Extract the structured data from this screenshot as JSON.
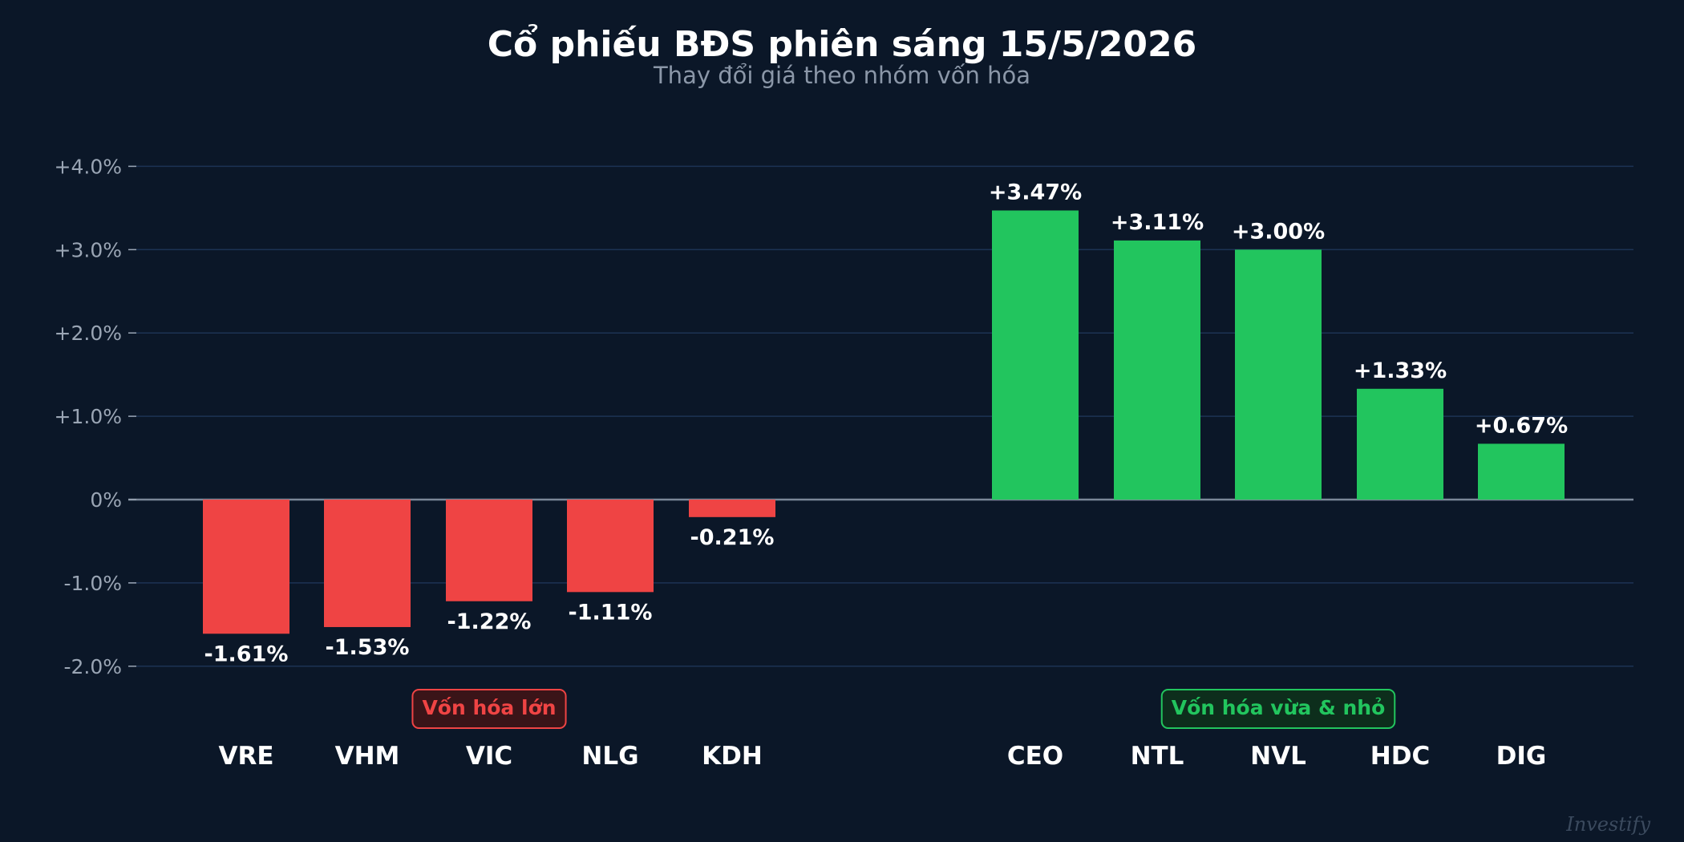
{
  "colors": {
    "background": "#0b1728",
    "negative": "#ef4444",
    "positive": "#22c55e",
    "grid": "#1c3354",
    "zero_line": "#7b8798",
    "title": "#ffffff",
    "subtitle": "#8b97a8",
    "tick": "#9aa5b4",
    "xtick": "#ffffff",
    "data_label": "#ffffff",
    "watermark": "#3b4a5e",
    "negative_group_fill": "#3a1418",
    "positive_group_fill": "#0d2e1c"
  },
  "watermark": "Investify",
  "chart_data": {
    "type": "bar",
    "title": "Cổ phiếu BĐS phiên sáng 15/5/2026",
    "subtitle": "Thay đổi giá theo nhóm vốn hóa",
    "xlabel": "",
    "ylabel": "",
    "ylim": [
      -2.0,
      4.0
    ],
    "yticks": [
      -2.0,
      -1.0,
      0,
      1.0,
      2.0,
      3.0,
      4.0
    ],
    "ytick_labels": [
      "-2.0%",
      "-1.0%",
      "0%",
      "+1.0%",
      "+2.0%",
      "+3.0%",
      "+4.0%"
    ],
    "grid": true,
    "groups": [
      {
        "label": "Vốn hóa lớn",
        "categories": [
          "VRE",
          "VHM",
          "VIC",
          "NLG",
          "KDH"
        ],
        "values": [
          -1.61,
          -1.53,
          -1.22,
          -1.11,
          -0.21
        ],
        "value_labels": [
          "-1.61%",
          "-1.53%",
          "-1.22%",
          "-1.11%",
          "-0.21%"
        ]
      },
      {
        "label": "Vốn hóa vừa & nhỏ",
        "categories": [
          "CEO",
          "NTL",
          "NVL",
          "HDC",
          "DIG"
        ],
        "values": [
          3.47,
          3.11,
          3.0,
          1.33,
          0.67
        ],
        "value_labels": [
          "+3.47%",
          "+3.11%",
          "+3.00%",
          "+1.33%",
          "+0.67%"
        ]
      }
    ]
  }
}
